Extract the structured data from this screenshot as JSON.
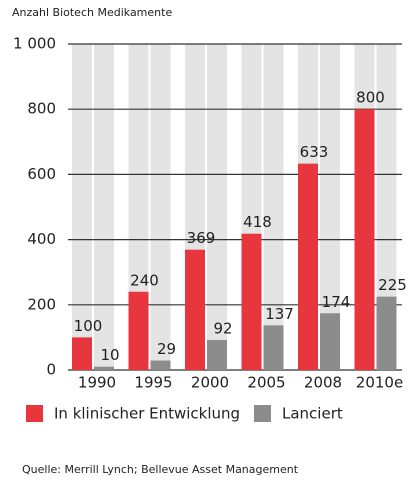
{
  "chart_data": {
    "type": "bar",
    "y_label": "Anzahl Biotech Medikamente",
    "categories": [
      "1990",
      "1995",
      "2000",
      "2005",
      "2008",
      "2010e"
    ],
    "series": [
      {
        "name": "In klinischer Entwicklung",
        "color": "#e8363f",
        "values": [
          100,
          240,
          369,
          418,
          633,
          800
        ]
      },
      {
        "name": "Lanciert",
        "color": "#8c8c8c",
        "values": [
          10,
          29,
          92,
          137,
          174,
          225
        ]
      }
    ],
    "ylim": [
      0,
      1000
    ],
    "yticks": [
      0,
      200,
      400,
      600,
      800,
      {
        "value": 1000,
        "label": "1 000"
      }
    ],
    "grid": true,
    "legend": "bottom",
    "source": "Quelle: Merrill Lynch; Bellevue Asset Management"
  }
}
